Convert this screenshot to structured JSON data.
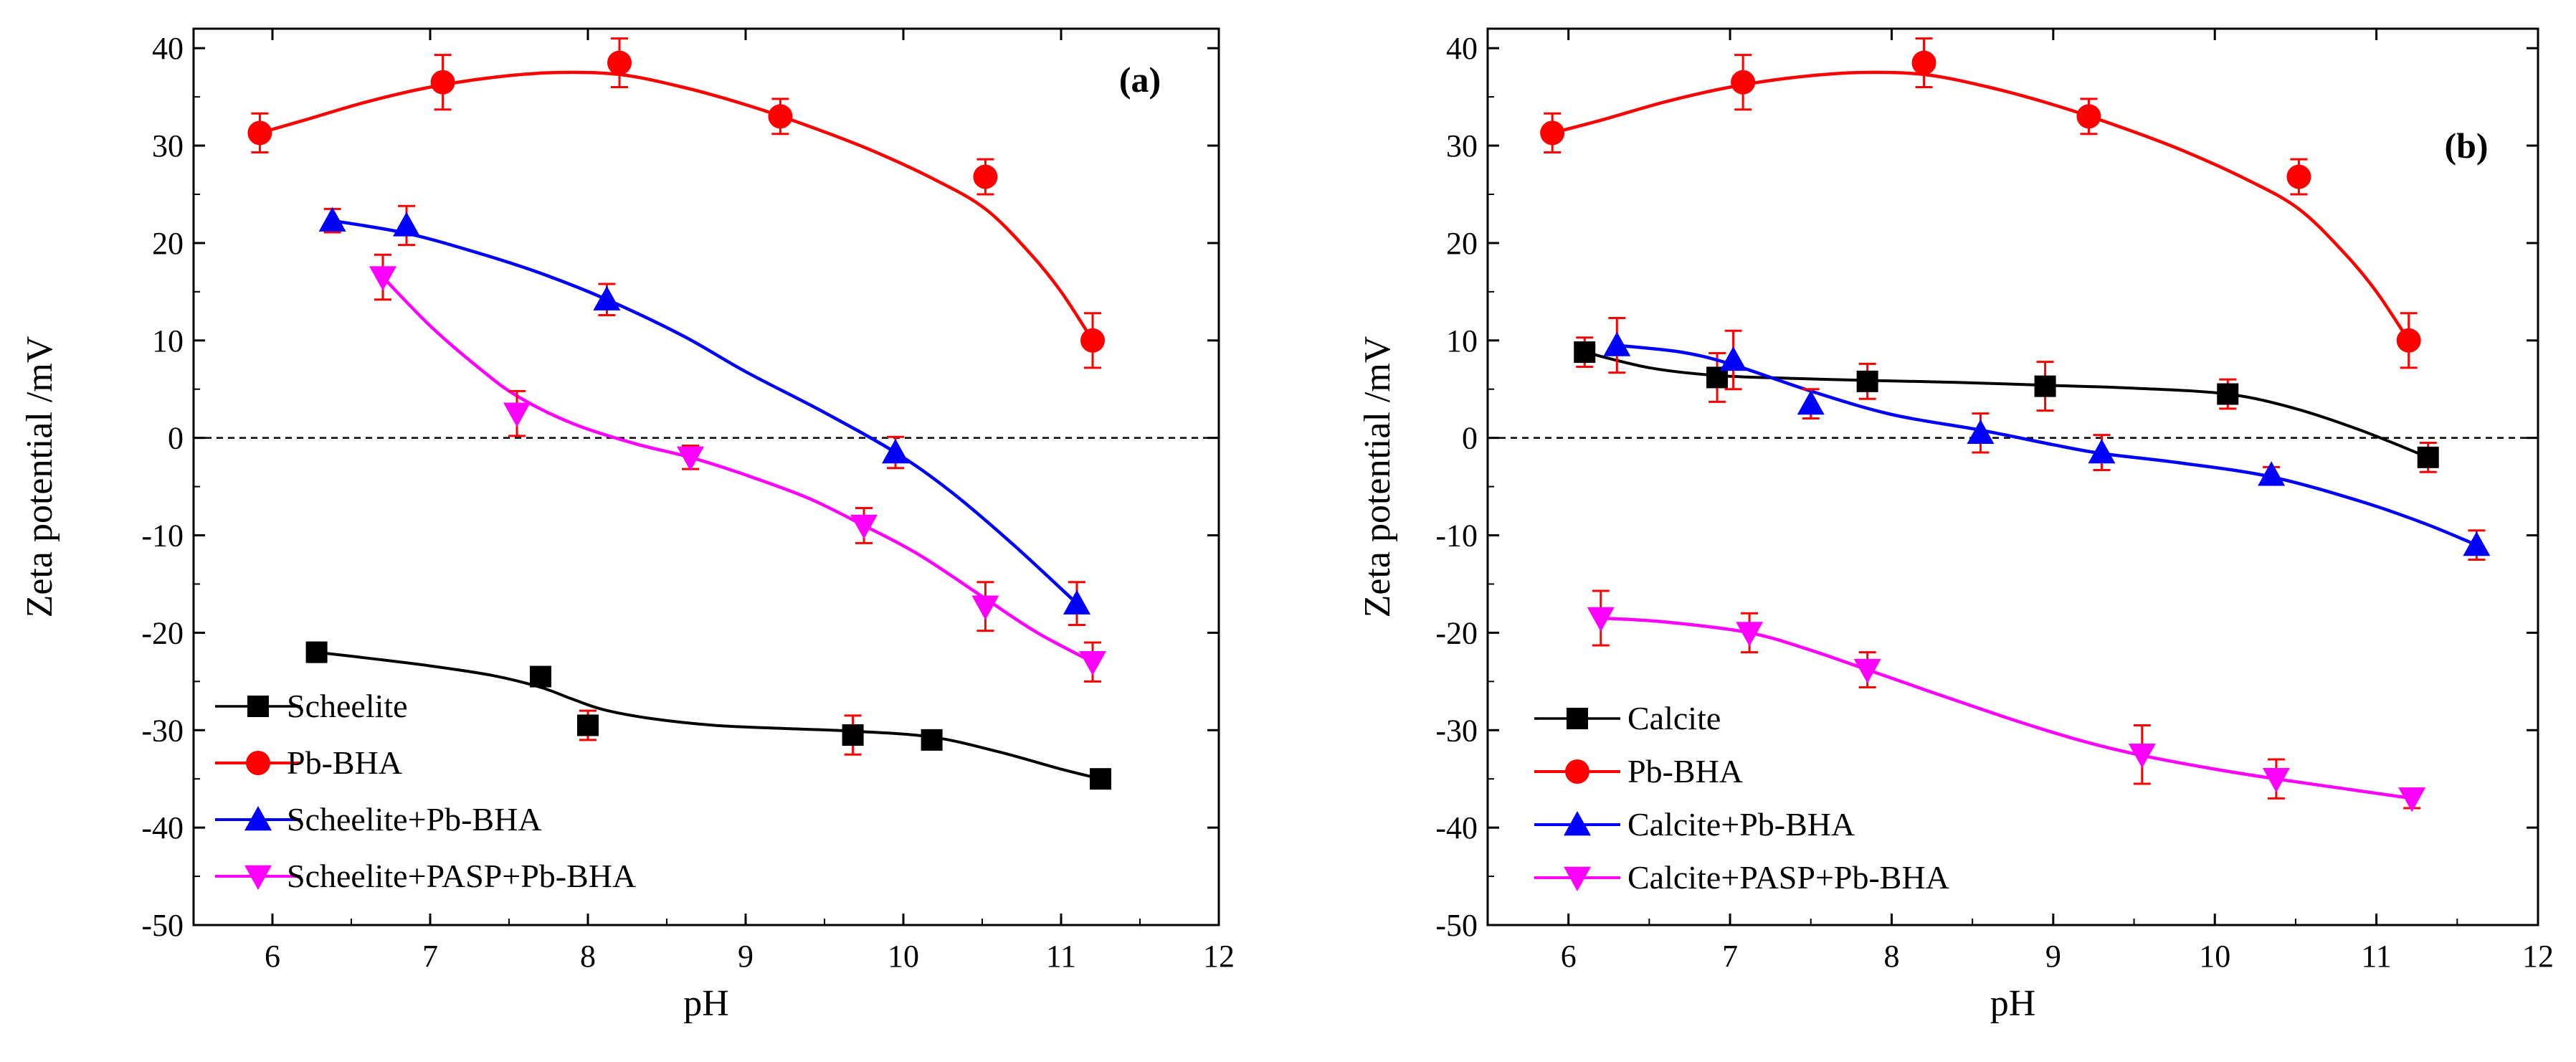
{
  "chart_data": [
    {
      "type": "line",
      "panel_label": "(a)",
      "xlabel": "pH",
      "ylabel": "Zeta potential /mV",
      "xlim": [
        5.5,
        12
      ],
      "ylim": [
        -50,
        42
      ],
      "xticks": [
        6,
        7,
        8,
        9,
        10,
        11,
        12
      ],
      "yticks": [
        -50,
        -40,
        -30,
        -20,
        -10,
        0,
        10,
        20,
        30,
        40
      ],
      "reference_line": 0,
      "legend_position": "bottom-left",
      "series": [
        {
          "name": "Scheelite",
          "color": "#000000",
          "marker": "square",
          "x": [
            6.28,
            7.7,
            8.0,
            9.68,
            10.18,
            11.25
          ],
          "y": [
            -22.0,
            -24.5,
            -29.5,
            -30.5,
            -31.0,
            -35.0
          ],
          "err": [
            1.0,
            0.8,
            1.5,
            2.0,
            0.8,
            0.8
          ],
          "fit_x": [
            6.28,
            6.6,
            7.0,
            7.4,
            7.7,
            7.9,
            8.1,
            8.4,
            8.8,
            9.2,
            9.68,
            10.18,
            10.6,
            11.0,
            11.25
          ],
          "fit_y": [
            -22.0,
            -22.6,
            -23.4,
            -24.4,
            -25.6,
            -26.8,
            -27.9,
            -28.8,
            -29.5,
            -29.8,
            -30.1,
            -30.7,
            -32.2,
            -34.0,
            -35.0
          ]
        },
        {
          "name": "Pb-BHA",
          "color": "#ff0000",
          "marker": "circle",
          "x": [
            5.92,
            7.08,
            8.2,
            9.22,
            10.52,
            11.2
          ],
          "y": [
            31.3,
            36.5,
            38.5,
            33.0,
            26.8,
            10.0
          ],
          "err": [
            2.0,
            2.8,
            2.5,
            1.8,
            1.8,
            2.8
          ],
          "fit_x": [
            5.92,
            6.2,
            6.6,
            7.0,
            7.4,
            7.8,
            8.2,
            8.6,
            9.0,
            9.4,
            9.8,
            10.2,
            10.52,
            10.8,
            11.0,
            11.2
          ],
          "fit_y": [
            31.3,
            32.6,
            34.5,
            36.0,
            37.0,
            37.5,
            37.3,
            36.0,
            34.2,
            32.0,
            29.5,
            26.5,
            23.5,
            19.0,
            15.0,
            10.0
          ]
        },
        {
          "name": "Scheelite+Pb-BHA",
          "color": "#0000ff",
          "marker": "triangle-up",
          "x": [
            6.38,
            6.85,
            8.12,
            9.95,
            11.1
          ],
          "y": [
            22.3,
            21.8,
            14.2,
            -1.5,
            -17.0
          ],
          "err": [
            1.2,
            2.0,
            1.6,
            1.6,
            2.2
          ],
          "fit_x": [
            6.38,
            6.85,
            7.3,
            7.7,
            8.12,
            8.6,
            9.0,
            9.5,
            9.95,
            10.3,
            10.7,
            11.1
          ],
          "fit_y": [
            22.3,
            21.0,
            19.0,
            16.9,
            14.2,
            10.5,
            6.8,
            2.6,
            -1.5,
            -5.5,
            -11.0,
            -17.0
          ]
        },
        {
          "name": "Scheelite+PASP+Pb-BHA",
          "color": "#ff00ff",
          "marker": "triangle-down",
          "x": [
            6.7,
            7.55,
            8.65,
            9.75,
            10.52,
            11.2
          ],
          "y": [
            16.5,
            2.5,
            -2.0,
            -9.0,
            -17.3,
            -23.0
          ],
          "err": [
            2.3,
            2.3,
            1.2,
            1.8,
            2.5,
            2.0
          ],
          "fit_x": [
            6.7,
            7.0,
            7.3,
            7.55,
            7.9,
            8.3,
            8.65,
            9.0,
            9.4,
            9.75,
            10.1,
            10.52,
            10.85,
            11.2
          ],
          "fit_y": [
            16.5,
            11.5,
            7.3,
            4.3,
            1.5,
            -0.6,
            -2.0,
            -3.8,
            -6.2,
            -9.0,
            -12.0,
            -16.5,
            -20.0,
            -23.0
          ]
        }
      ]
    },
    {
      "type": "line",
      "panel_label": "(b)",
      "xlabel": "pH",
      "ylabel": "Zeta potential  /mV",
      "xlim": [
        5.5,
        12
      ],
      "ylim": [
        -50,
        42
      ],
      "xticks": [
        6,
        7,
        8,
        9,
        10,
        11,
        12
      ],
      "yticks": [
        -50,
        -40,
        -30,
        -20,
        -10,
        0,
        10,
        20,
        30,
        40
      ],
      "reference_line": 0,
      "legend_position": "bottom-left",
      "series": [
        {
          "name": "Calcite",
          "color": "#000000",
          "marker": "square",
          "x": [
            6.1,
            6.92,
            7.85,
            8.95,
            10.08,
            11.32
          ],
          "y": [
            8.8,
            6.2,
            5.8,
            5.3,
            4.5,
            -2.0
          ],
          "err": [
            1.5,
            2.5,
            1.8,
            2.5,
            1.5,
            1.5
          ],
          "fit_x": [
            6.1,
            6.5,
            6.92,
            7.4,
            7.85,
            8.4,
            8.95,
            9.5,
            10.08,
            10.5,
            10.9,
            11.32
          ],
          "fit_y": [
            8.8,
            7.2,
            6.4,
            6.1,
            5.9,
            5.7,
            5.4,
            5.1,
            4.5,
            3.0,
            0.8,
            -2.0
          ]
        },
        {
          "name": "Pb-BHA",
          "color": "#ff0000",
          "marker": "circle",
          "x": [
            5.9,
            7.08,
            8.2,
            9.22,
            10.52,
            11.2
          ],
          "y": [
            31.3,
            36.5,
            38.5,
            33.0,
            26.8,
            10.0
          ],
          "err": [
            2.0,
            2.8,
            2.5,
            1.8,
            1.8,
            2.8
          ],
          "fit_x": [
            5.9,
            6.2,
            6.6,
            7.0,
            7.4,
            7.8,
            8.2,
            8.6,
            9.0,
            9.4,
            9.8,
            10.2,
            10.52,
            10.8,
            11.0,
            11.2
          ],
          "fit_y": [
            31.3,
            32.6,
            34.5,
            36.0,
            37.0,
            37.5,
            37.3,
            36.0,
            34.2,
            32.0,
            29.5,
            26.5,
            23.5,
            19.0,
            15.0,
            10.0
          ]
        },
        {
          "name": "Calcite+Pb-BHA",
          "color": "#0000ff",
          "marker": "triangle-up",
          "x": [
            6.3,
            7.02,
            7.5,
            8.55,
            9.3,
            10.35,
            11.62
          ],
          "y": [
            9.5,
            8.0,
            3.5,
            0.5,
            -1.5,
            -3.8,
            -11.0
          ],
          "err": [
            2.8,
            3.0,
            1.5,
            2.0,
            1.8,
            0.8,
            1.5
          ],
          "fit_x": [
            6.3,
            6.7,
            7.02,
            7.5,
            8.0,
            8.55,
            9.0,
            9.3,
            9.8,
            10.35,
            10.9,
            11.3,
            11.62
          ],
          "fit_y": [
            9.5,
            8.8,
            7.5,
            4.8,
            2.4,
            0.8,
            -0.7,
            -1.6,
            -2.6,
            -4.0,
            -6.5,
            -8.8,
            -11.0
          ]
        },
        {
          "name": "Calcite+PASP+Pb-BHA",
          "color": "#ff00ff",
          "marker": "triangle-down",
          "x": [
            6.2,
            7.12,
            7.85,
            9.55,
            10.38,
            11.22
          ],
          "y": [
            -18.5,
            -20.0,
            -23.8,
            -32.5,
            -35.0,
            -37.0
          ],
          "err": [
            2.8,
            2.0,
            1.8,
            3.0,
            2.0,
            1.0
          ],
          "fit_x": [
            6.2,
            6.6,
            7.12,
            7.5,
            7.85,
            8.3,
            8.8,
            9.2,
            9.55,
            10.0,
            10.38,
            10.8,
            11.22
          ],
          "fit_y": [
            -18.5,
            -18.9,
            -20.0,
            -21.8,
            -23.8,
            -26.4,
            -29.2,
            -31.2,
            -32.6,
            -34.0,
            -35.0,
            -36.0,
            -37.0
          ]
        }
      ]
    }
  ]
}
